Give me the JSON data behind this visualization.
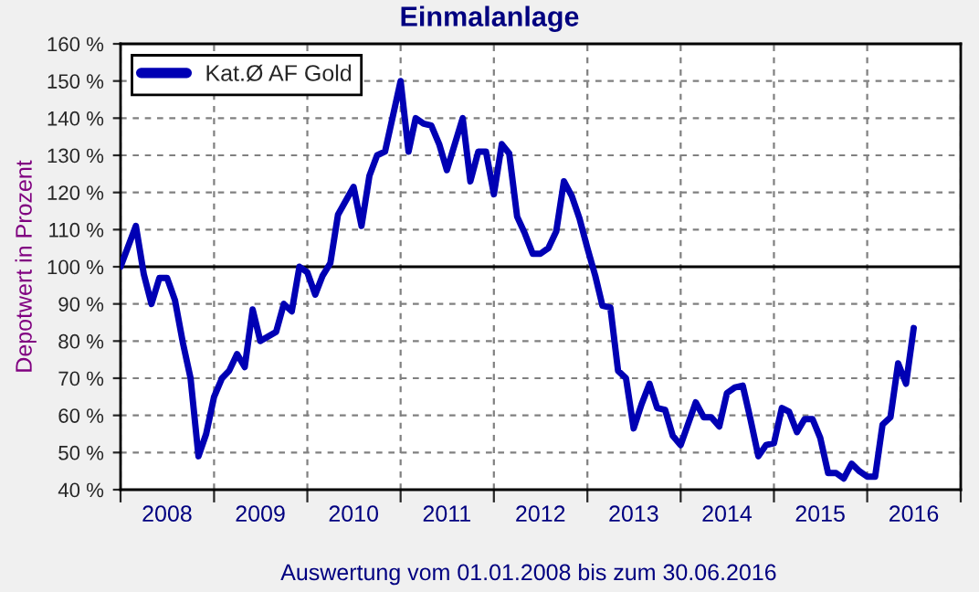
{
  "chart_data": {
    "type": "line",
    "title": "Einmalanlage",
    "ylabel": "Depotwert in Prozent",
    "annotations": [
      "Auswertung vom 01.01.2008 bis zum 30.06.2016"
    ],
    "series": [
      {
        "name": "Kat.Ø AF Gold",
        "color": "#0000b4",
        "x": [
          "2008-01",
          "2008-03",
          "2008-04",
          "2008-05",
          "2008-06",
          "2008-07",
          "2008-08",
          "2008-09",
          "2008-10",
          "2008-11",
          "2008-12",
          "2009-01",
          "2009-02",
          "2009-03",
          "2009-04",
          "2009-05",
          "2009-06",
          "2009-07",
          "2009-09",
          "2009-10",
          "2009-11",
          "2009-12",
          "2010-01",
          "2010-02",
          "2010-03",
          "2010-04",
          "2010-05",
          "2010-07",
          "2010-08",
          "2010-09",
          "2010-10",
          "2010-11",
          "2011-01",
          "2011-02",
          "2011-03",
          "2011-04",
          "2011-05",
          "2011-06",
          "2011-07",
          "2011-09",
          "2011-10",
          "2011-11",
          "2011-12",
          "2012-01",
          "2012-02",
          "2012-03",
          "2012-04",
          "2012-05",
          "2012-06",
          "2012-07",
          "2012-08",
          "2012-09",
          "2012-10",
          "2012-11",
          "2012-12",
          "2013-01",
          "2013-02",
          "2013-03",
          "2013-04",
          "2013-05",
          "2013-06",
          "2013-07",
          "2013-08",
          "2013-09",
          "2013-10",
          "2013-11",
          "2013-12",
          "2014-01",
          "2014-03",
          "2014-04",
          "2014-05",
          "2014-06",
          "2014-07",
          "2014-08",
          "2014-09",
          "2014-10",
          "2014-11",
          "2014-12",
          "2015-01",
          "2015-02",
          "2015-03",
          "2015-04",
          "2015-05",
          "2015-06",
          "2015-07",
          "2015-08",
          "2015-09",
          "2015-10",
          "2015-11",
          "2015-12",
          "2016-01",
          "2016-02",
          "2016-03",
          "2016-04",
          "2016-05",
          "2016-06",
          "2016-07"
        ],
        "values": [
          100,
          111,
          98,
          90,
          97,
          97,
          91,
          79.5,
          70,
          49,
          55,
          65,
          70,
          72,
          76.5,
          73,
          88.5,
          80,
          82.5,
          90,
          88,
          100,
          98.5,
          92.5,
          97.5,
          101,
          114,
          121.5,
          111,
          124.5,
          130,
          131,
          150,
          131,
          140,
          138.5,
          138,
          133,
          126,
          140,
          123,
          131,
          131,
          119.5,
          133,
          130.5,
          113.5,
          109,
          103.5,
          103.5,
          105,
          109.5,
          123,
          119,
          113,
          105,
          97.5,
          89.5,
          89,
          72,
          70,
          56.5,
          63,
          68.5,
          62,
          61.5,
          54.5,
          52,
          63.5,
          59.5,
          59.5,
          57,
          66,
          67.5,
          68,
          59,
          49,
          52,
          52.5,
          62,
          61,
          55.5,
          59,
          59,
          54,
          44.5,
          44.5,
          43,
          47,
          45,
          43.5,
          43.5,
          57.5,
          59.5,
          74,
          68.5,
          83.5
        ]
      }
    ],
    "xlim": [
      "2008-01-01",
      "2017-01-01"
    ],
    "xticks": [
      {
        "value": "2008-01-01",
        "label": null
      },
      {
        "value": "2009-01-01",
        "label": null
      },
      {
        "value": "2010-01-01",
        "label": null
      },
      {
        "value": "2011-01-01",
        "label": null
      },
      {
        "value": "2012-01-01",
        "label": null
      },
      {
        "value": "2013-01-01",
        "label": null
      },
      {
        "value": "2014-01-01",
        "label": null
      },
      {
        "value": "2015-01-01",
        "label": null
      },
      {
        "value": "2016-01-01",
        "label": null
      },
      {
        "value": "2017-01-01",
        "label": null
      },
      {
        "value": "2008-07-01",
        "label": "2008"
      },
      {
        "value": "2009-07-01",
        "label": "2009"
      },
      {
        "value": "2010-07-01",
        "label": "2010"
      },
      {
        "value": "2011-07-01",
        "label": "2011"
      },
      {
        "value": "2012-07-01",
        "label": "2012"
      },
      {
        "value": "2013-07-01",
        "label": "2013"
      },
      {
        "value": "2014-07-01",
        "label": "2014"
      },
      {
        "value": "2015-07-01",
        "label": "2015"
      },
      {
        "value": "2016-07-01",
        "label": "2016"
      }
    ],
    "ylim": [
      40,
      160
    ],
    "yticks": [
      {
        "value": 40,
        "label": "40 %"
      },
      {
        "value": 50,
        "label": "50 %"
      },
      {
        "value": 60,
        "label": "60 %"
      },
      {
        "value": 70,
        "label": "70 %"
      },
      {
        "value": 80,
        "label": "80 %"
      },
      {
        "value": 90,
        "label": "90 %"
      },
      {
        "value": 100,
        "label": "100 %"
      },
      {
        "value": 110,
        "label": "110 %"
      },
      {
        "value": 120,
        "label": "120 %"
      },
      {
        "value": 130,
        "label": "130 %"
      },
      {
        "value": 140,
        "label": "140 %"
      },
      {
        "value": 150,
        "label": "150 %"
      },
      {
        "value": 160,
        "label": "160 %"
      }
    ],
    "ref_lines": [
      {
        "axis": "y",
        "value": 100,
        "color": "#000000",
        "line_style": "solid"
      }
    ],
    "grid": true,
    "legend": "top left",
    "line_style": "solid",
    "marker": "none"
  }
}
